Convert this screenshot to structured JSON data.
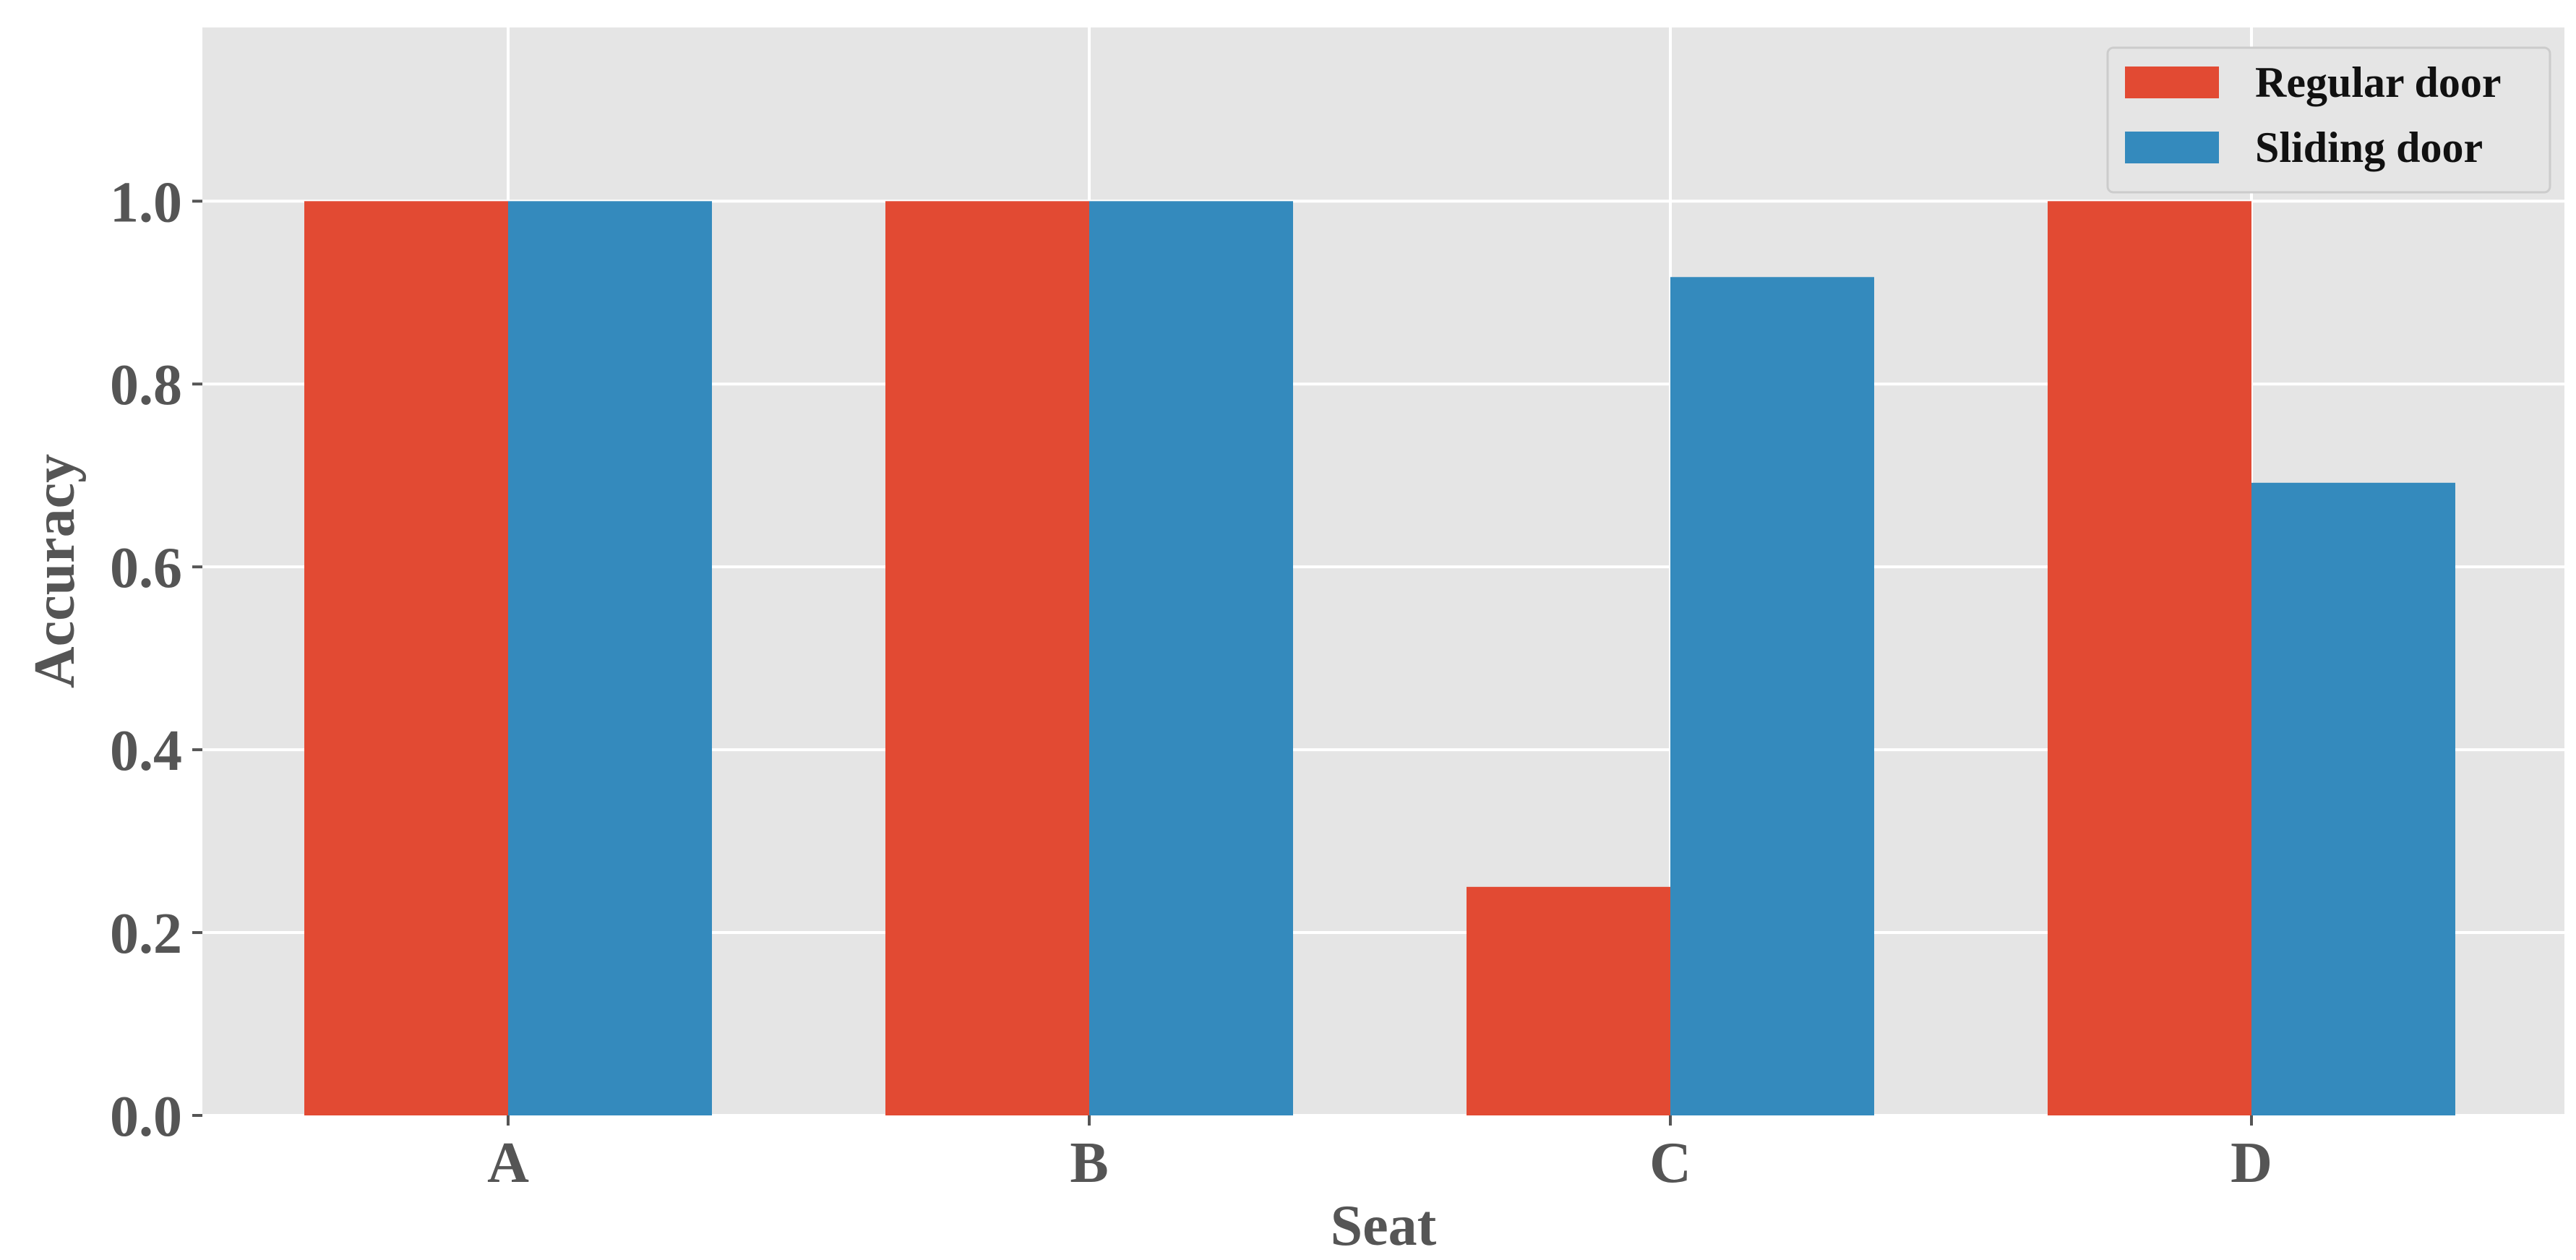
{
  "chart_data": {
    "type": "bar",
    "title": "",
    "xlabel": "Seat",
    "ylabel": "Accuracy",
    "categories": [
      "A",
      "B",
      "C",
      "D"
    ],
    "series": [
      {
        "name": "Regular door",
        "values": [
          1.0,
          1.0,
          0.25,
          1.0
        ],
        "color": "#E24A33"
      },
      {
        "name": "Sliding door",
        "values": [
          1.0,
          1.0,
          0.917,
          0.692
        ],
        "color": "#348ABD"
      }
    ],
    "ylim": [
      0,
      1.19
    ],
    "yticks": [
      "0.0",
      "0.2",
      "0.4",
      "0.6",
      "0.8",
      "1.0"
    ],
    "grid": true,
    "legend_position": "top-right",
    "plot_background": "#E5E5E5",
    "grid_color": "#FFFFFF"
  }
}
